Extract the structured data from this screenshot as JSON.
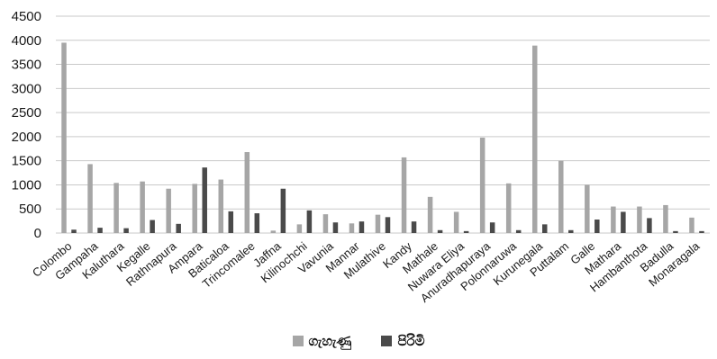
{
  "chart_data": {
    "type": "bar",
    "title": "",
    "xlabel": "",
    "ylabel": "",
    "ylim": [
      0,
      4500
    ],
    "yticks": [
      0,
      500,
      1000,
      1500,
      2000,
      2500,
      3000,
      3500,
      4000,
      4500
    ],
    "grid": true,
    "legend_position": "bottom",
    "categories": [
      "Colombo",
      "Gampaha",
      "Kaluthara",
      "Kegalle",
      "Rathnapura",
      "Ampara",
      "Baticaloa",
      "Trincomalee",
      "Jaffna",
      "Kilinochchi",
      "Vavunia",
      "Mannar",
      "Mulathive",
      "Kandy",
      "Mathale",
      "Nuwara Eliya",
      "Anuradhapuraya",
      "Polonnaruwa",
      "Kurunegala",
      "Puttalam",
      "Galle",
      "Mathara",
      "Hambanthota",
      "Badulla",
      "Monaragala"
    ],
    "series": [
      {
        "name": "ගැහැණු",
        "color": "#a6a6a6",
        "values": [
          3950,
          1430,
          1040,
          1070,
          920,
          1020,
          1110,
          1680,
          50,
          180,
          390,
          200,
          380,
          1570,
          750,
          440,
          1980,
          1030,
          3890,
          1500,
          1000,
          550,
          550,
          580,
          320
        ]
      },
      {
        "name": "පිරිමි",
        "color": "#4a4a4a",
        "values": [
          70,
          110,
          100,
          270,
          190,
          1360,
          450,
          410,
          920,
          470,
          220,
          240,
          330,
          240,
          60,
          40,
          220,
          60,
          180,
          60,
          280,
          440,
          310,
          40,
          40
        ]
      }
    ]
  }
}
